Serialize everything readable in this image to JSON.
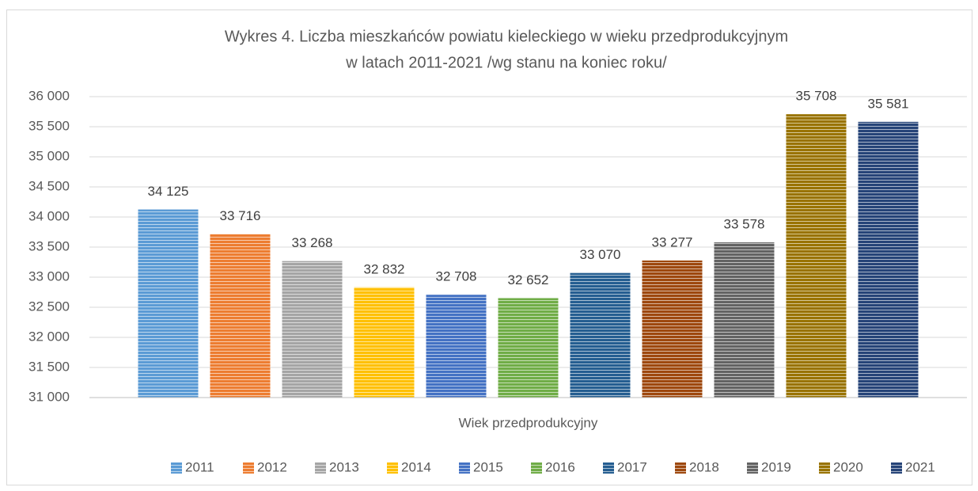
{
  "chart_data": {
    "type": "bar",
    "title": [
      "Wykres 4. Liczba mieszkańców powiatu kieleckiego w wieku przedprodukcyjnym",
      "w latach 2011-2021 /wg stanu na koniec roku/"
    ],
    "categories": [
      "Wiek przedprodukcyjny"
    ],
    "series": [
      {
        "name": "2011",
        "color": "#5b9bd5",
        "values": [
          34125
        ],
        "value_labels": [
          "34 125"
        ]
      },
      {
        "name": "2012",
        "color": "#ed7d31",
        "values": [
          33716
        ],
        "value_labels": [
          "33 716"
        ]
      },
      {
        "name": "2013",
        "color": "#a5a5a5",
        "values": [
          33268
        ],
        "value_labels": [
          "33 268"
        ]
      },
      {
        "name": "2014",
        "color": "#ffc000",
        "values": [
          32832
        ],
        "value_labels": [
          "32 832"
        ]
      },
      {
        "name": "2015",
        "color": "#4472c4",
        "values": [
          32708
        ],
        "value_labels": [
          "32 708"
        ]
      },
      {
        "name": "2016",
        "color": "#70ad47",
        "values": [
          32652
        ],
        "value_labels": [
          "32 652"
        ]
      },
      {
        "name": "2017",
        "color": "#255e91",
        "values": [
          33070
        ],
        "value_labels": [
          "33 070"
        ]
      },
      {
        "name": "2018",
        "color": "#9e480e",
        "values": [
          33277
        ],
        "value_labels": [
          "33 277"
        ]
      },
      {
        "name": "2019",
        "color": "#636363",
        "values": [
          33578
        ],
        "value_labels": [
          "33 578"
        ]
      },
      {
        "name": "2020",
        "color": "#997300",
        "values": [
          35708
        ],
        "value_labels": [
          "35 708"
        ]
      },
      {
        "name": "2021",
        "color": "#264478",
        "values": [
          35581
        ],
        "value_labels": [
          "35 581"
        ]
      }
    ],
    "ylim": [
      31000,
      36000
    ],
    "yticks": [
      {
        "value": 31000,
        "label": "31 000"
      },
      {
        "value": 31500,
        "label": "31 500"
      },
      {
        "value": 32000,
        "label": "32 000"
      },
      {
        "value": 32500,
        "label": "32 500"
      },
      {
        "value": 33000,
        "label": "33 000"
      },
      {
        "value": 33500,
        "label": "33 500"
      },
      {
        "value": 34000,
        "label": "34 000"
      },
      {
        "value": 34500,
        "label": "34 500"
      },
      {
        "value": 35000,
        "label": "35 000"
      },
      {
        "value": 35500,
        "label": "35 500"
      },
      {
        "value": 36000,
        "label": "36 000"
      }
    ],
    "grid": true,
    "legend": "bottom"
  }
}
